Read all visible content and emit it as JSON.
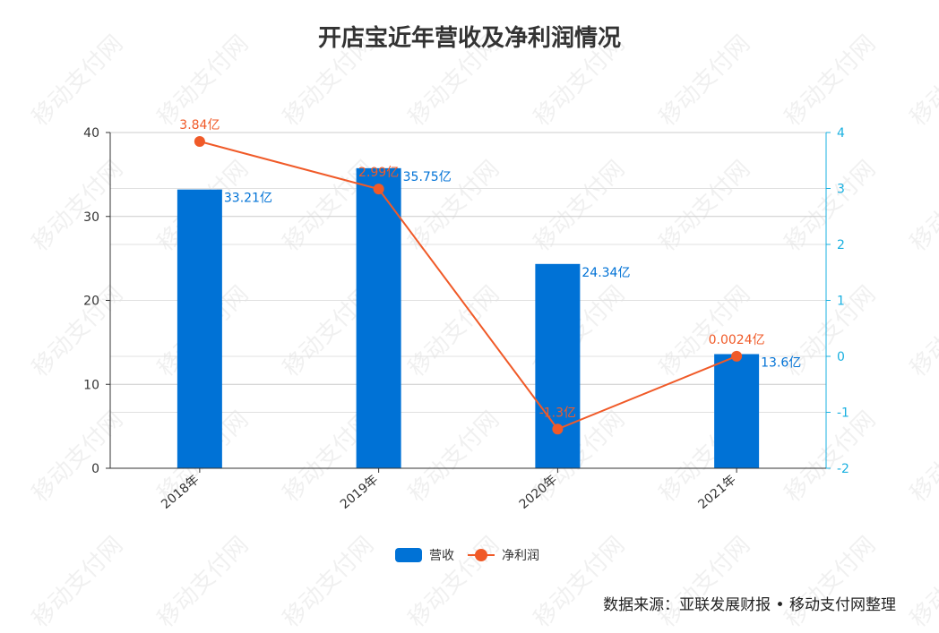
{
  "title": "开店宝近年营收及净利润情况",
  "source": "数据来源：亚联发展财报 • 移动支付网整理",
  "watermark_text": "移动支付网",
  "colors": {
    "bar": "#0072D6",
    "line": "#F05A28",
    "right_axis": "#1AB0E0",
    "axis_text": "#333333",
    "grid": "#cccccc"
  },
  "chart_data": {
    "type": "bar",
    "categories": [
      "2018年",
      "2019年",
      "2020年",
      "2021年"
    ],
    "series": [
      {
        "name": "营收",
        "type": "bar",
        "axis": "left",
        "values": [
          33.21,
          35.75,
          24.34,
          13.6
        ],
        "labels": [
          "33.21亿",
          "35.75亿",
          "24.34亿",
          "13.6亿"
        ]
      },
      {
        "name": "净利润",
        "type": "line",
        "axis": "right",
        "values": [
          3.84,
          2.99,
          -1.3,
          0.0024
        ],
        "labels": [
          "3.84亿",
          "2.99亿",
          "-1.3亿",
          "0.0024亿"
        ]
      }
    ],
    "y_left": {
      "min": 0,
      "max": 40,
      "ticks": [
        0,
        10,
        20,
        30,
        40
      ]
    },
    "y_right": {
      "min": -2,
      "max": 4,
      "ticks": [
        -2,
        -1,
        0,
        1,
        2,
        3,
        4
      ]
    },
    "legend_position": "bottom",
    "grid": true
  }
}
